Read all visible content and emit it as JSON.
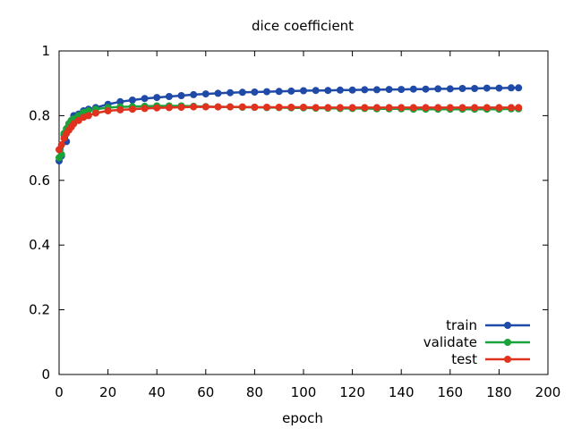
{
  "chart_data": {
    "type": "line",
    "title": "dice coefficient",
    "xlabel": "epoch",
    "ylabel": "",
    "xlim": [
      0,
      200
    ],
    "ylim": [
      0,
      1
    ],
    "xticks": [
      0,
      20,
      40,
      60,
      80,
      100,
      120,
      140,
      160,
      180,
      200
    ],
    "yticks": [
      0,
      0.2,
      0.4,
      0.6,
      0.8,
      1
    ],
    "ytick_labels": [
      "0",
      "0.2",
      "0.4",
      "0.6",
      "0.8",
      "1"
    ],
    "grid": false,
    "legend_position": "bottom-right",
    "series": [
      {
        "name": "train",
        "color": "#1f4aa8",
        "x": [
          0,
          1,
          2,
          3,
          4,
          5,
          6,
          8,
          10,
          12,
          15,
          20,
          25,
          30,
          35,
          40,
          45,
          50,
          55,
          60,
          65,
          70,
          75,
          80,
          85,
          90,
          95,
          100,
          105,
          110,
          115,
          120,
          125,
          130,
          135,
          140,
          145,
          150,
          155,
          160,
          165,
          170,
          175,
          180,
          185,
          188
        ],
        "y": [
          0.66,
          0.675,
          0.74,
          0.72,
          0.775,
          0.785,
          0.8,
          0.805,
          0.815,
          0.82,
          0.825,
          0.835,
          0.843,
          0.848,
          0.853,
          0.856,
          0.859,
          0.862,
          0.865,
          0.867,
          0.869,
          0.871,
          0.872,
          0.873,
          0.874,
          0.875,
          0.876,
          0.877,
          0.878,
          0.878,
          0.879,
          0.879,
          0.88,
          0.88,
          0.881,
          0.881,
          0.882,
          0.882,
          0.883,
          0.883,
          0.884,
          0.884,
          0.885,
          0.885,
          0.886,
          0.886
        ]
      },
      {
        "name": "validate",
        "color": "#1aa33a",
        "x": [
          0,
          1,
          2,
          3,
          4,
          5,
          6,
          8,
          10,
          12,
          15,
          20,
          25,
          30,
          35,
          40,
          45,
          50,
          55,
          60,
          65,
          70,
          75,
          80,
          85,
          90,
          95,
          100,
          105,
          110,
          115,
          120,
          125,
          130,
          135,
          140,
          145,
          150,
          155,
          160,
          165,
          170,
          175,
          180,
          185,
          188
        ],
        "y": [
          0.67,
          0.68,
          0.745,
          0.76,
          0.775,
          0.785,
          0.79,
          0.8,
          0.81,
          0.815,
          0.82,
          0.825,
          0.827,
          0.828,
          0.829,
          0.83,
          0.83,
          0.83,
          0.829,
          0.828,
          0.827,
          0.827,
          0.826,
          0.826,
          0.825,
          0.825,
          0.824,
          0.824,
          0.823,
          0.823,
          0.822,
          0.822,
          0.822,
          0.821,
          0.821,
          0.821,
          0.82,
          0.82,
          0.82,
          0.82,
          0.82,
          0.82,
          0.82,
          0.82,
          0.821,
          0.821
        ]
      },
      {
        "name": "test",
        "color": "#e0321e",
        "x": [
          0,
          1,
          2,
          3,
          4,
          5,
          6,
          8,
          10,
          12,
          15,
          20,
          25,
          30,
          35,
          40,
          45,
          50,
          55,
          60,
          65,
          70,
          75,
          80,
          85,
          90,
          95,
          100,
          105,
          110,
          115,
          120,
          125,
          130,
          135,
          140,
          145,
          150,
          155,
          160,
          165,
          170,
          175,
          180,
          185,
          188
        ],
        "y": [
          0.695,
          0.71,
          0.73,
          0.745,
          0.755,
          0.765,
          0.775,
          0.785,
          0.795,
          0.8,
          0.808,
          0.815,
          0.818,
          0.82,
          0.822,
          0.824,
          0.825,
          0.826,
          0.827,
          0.827,
          0.827,
          0.827,
          0.827,
          0.826,
          0.826,
          0.826,
          0.826,
          0.826,
          0.825,
          0.825,
          0.825,
          0.825,
          0.825,
          0.825,
          0.825,
          0.825,
          0.825,
          0.825,
          0.825,
          0.825,
          0.825,
          0.825,
          0.825,
          0.825,
          0.825,
          0.825
        ]
      }
    ]
  }
}
